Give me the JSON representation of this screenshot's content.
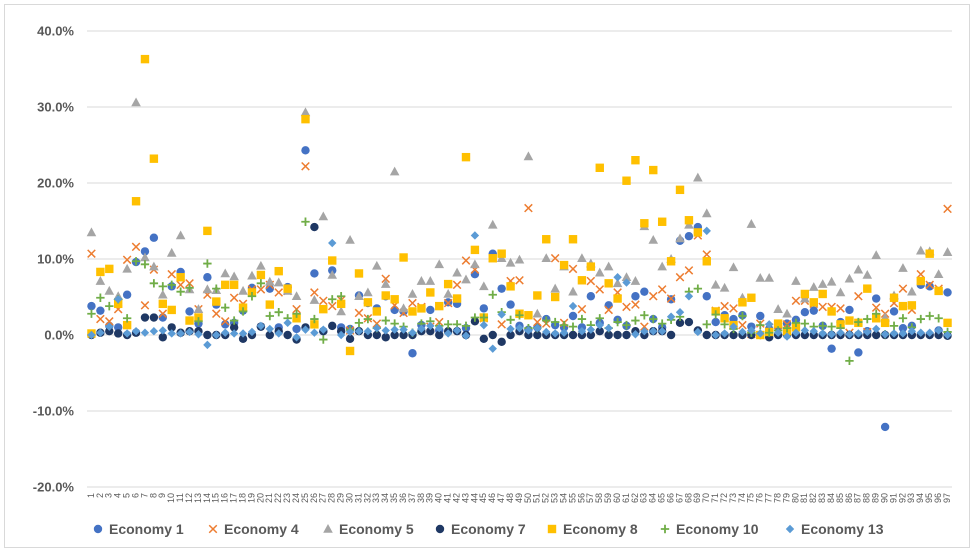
{
  "chart_data": {
    "type": "scatter",
    "title": "",
    "xlabel": "",
    "ylabel": "",
    "ylim": [
      -20,
      40
    ],
    "y_ticks": [
      "40.0%",
      "30.0%",
      "20.0%",
      "10.0%",
      "0.0%",
      "-10.0%",
      "-20.0%"
    ],
    "x": [
      1,
      2,
      3,
      4,
      5,
      6,
      7,
      8,
      9,
      10,
      11,
      12,
      13,
      14,
      15,
      16,
      17,
      18,
      19,
      20,
      21,
      22,
      23,
      24,
      25,
      26,
      27,
      28,
      29,
      30,
      31,
      32,
      33,
      34,
      35,
      36,
      37,
      38,
      39,
      40,
      41,
      42,
      43,
      44,
      45,
      46,
      47,
      48,
      49,
      50,
      51,
      52,
      53,
      54,
      55,
      56,
      57,
      58,
      59,
      60,
      61,
      62,
      63,
      64,
      65,
      66,
      67,
      68,
      69,
      70,
      71,
      72,
      73,
      74,
      75,
      76,
      77,
      78,
      79,
      80,
      81,
      82,
      83,
      84,
      85,
      86,
      87,
      88,
      89,
      90,
      91,
      92,
      93,
      94,
      95,
      96,
      97
    ],
    "x_tick_labels": [
      "1",
      "2",
      "3",
      "4",
      "5",
      "6",
      "7",
      "8",
      "9",
      "10",
      "11",
      "12",
      "13",
      "14",
      "15",
      "16",
      "17",
      "18",
      "19",
      "20",
      "21",
      "22",
      "23",
      "24",
      "25",
      "26",
      "27",
      "28",
      "29",
      "30",
      "31",
      "32",
      "33",
      "34",
      "35",
      "36",
      "37",
      "38",
      "39",
      "40",
      "41",
      "42",
      "43",
      "44",
      "45",
      "46",
      "47",
      "48",
      "49",
      "50",
      "51",
      "52",
      "53",
      "54",
      "55",
      "56",
      "57",
      "58",
      "59",
      "60",
      "61",
      "62",
      "63",
      "64",
      "65",
      "66",
      "67",
      "68",
      "69",
      "70",
      "71",
      "72",
      "73",
      "74",
      "75",
      "76",
      "77",
      "78",
      "79",
      "80",
      "81",
      "82",
      "83",
      "84",
      "85",
      "86",
      "87",
      "88",
      "89",
      "90",
      "91",
      "92",
      "93",
      "94",
      "95",
      "96",
      "97"
    ],
    "grid": "horizontal",
    "legend_position": "bottom",
    "series": [
      {
        "name": "Economy 1",
        "marker": "circle",
        "color": "#4472c4",
        "values": [
          3.8,
          3.2,
          1.2,
          1.0,
          5.3,
          9.6,
          11.0,
          12.8,
          2.3,
          6.4,
          8.3,
          3.1,
          1.5,
          7.6,
          4.0,
          1.4,
          1.6,
          3.2,
          6.2,
          1.1,
          6.1,
          1.0,
          6.3,
          0.8,
          24.3,
          8.1,
          0.5,
          8.5,
          1.0,
          0.8,
          5.2,
          4.2,
          3.5,
          5.1,
          3.3,
          3.1,
          -2.4,
          1.3,
          3.3,
          0.6,
          4.3,
          4.1,
          0.9,
          8.0,
          3.5,
          10.7,
          6.1,
          4.0,
          1.2,
          0.7,
          1.0,
          2.1,
          1.3,
          1.0,
          2.5,
          1.0,
          5.1,
          1.6,
          3.9,
          2.0,
          1.2,
          5.1,
          5.7,
          2.1,
          1.0,
          4.7,
          12.4,
          13.0,
          14.2,
          5.1,
          1.7,
          2.6,
          2.1,
          2.6,
          1.1,
          2.5,
          0.8,
          1.1,
          1.5,
          2.0,
          3.0,
          3.2,
          1.2,
          -1.8,
          1.7,
          3.3,
          -2.3,
          0.5,
          4.8,
          -12.1,
          3.1,
          0.9,
          1.2,
          6.6,
          6.4,
          0.6,
          5.6
        ]
      },
      {
        "name": "Economy 4",
        "marker": "x",
        "color": "#ed7d31",
        "values": [
          10.7,
          2.1,
          1.8,
          3.4,
          9.9,
          11.6,
          3.9,
          8.6,
          2.8,
          8.0,
          6.6,
          6.8,
          3.4,
          5.3,
          2.8,
          1.8,
          4.9,
          4.1,
          6.0,
          6.0,
          6.6,
          5.6,
          5.8,
          3.4,
          22.2,
          5.6,
          4.5,
          3.8,
          4.6,
          0.6,
          2.9,
          2.2,
          1.5,
          7.4,
          3.9,
          2.9,
          4.2,
          3.7,
          1.1,
          1.7,
          4.2,
          6.6,
          9.8,
          8.6,
          2.2,
          10.1,
          1.4,
          7.1,
          7.2,
          16.7,
          1.7,
          1.5,
          10.1,
          1.6,
          8.7,
          3.4,
          7.1,
          6.0,
          3.3,
          5.6,
          3.7,
          4.0,
          1.1,
          5.1,
          6.0,
          4.8,
          7.6,
          8.5,
          13.1,
          10.6,
          3.2,
          3.8,
          3.5,
          1.3,
          0.1,
          1.5,
          1.0,
          1.3,
          1.4,
          4.5,
          4.5,
          4.1,
          3.7,
          3.7,
          3.5,
          0.3,
          5.1,
          0.4,
          3.6,
          2.8,
          4.2,
          6.1,
          3.3,
          8.0,
          6.6,
          6.1,
          16.6
        ]
      },
      {
        "name": "Economy 5",
        "marker": "triangle",
        "color": "#a5a5a5",
        "values": [
          13.5,
          7.1,
          5.8,
          5.1,
          8.7,
          30.6,
          10.2,
          9.0,
          5.3,
          10.8,
          13.1,
          6.0,
          3.4,
          6.0,
          5.9,
          8.1,
          7.7,
          5.8,
          7.8,
          9.1,
          7.0,
          6.9,
          5.8,
          5.1,
          29.3,
          4.6,
          15.6,
          7.9,
          3.1,
          12.5,
          5.1,
          5.6,
          9.1,
          6.7,
          21.5,
          3.5,
          5.4,
          7.1,
          7.1,
          9.3,
          5.4,
          8.2,
          7.3,
          9.3,
          6.4,
          14.5,
          10.1,
          9.5,
          9.9,
          23.5,
          2.8,
          10.1,
          6.1,
          9.0,
          5.7,
          10.1,
          9.4,
          8.2,
          9.0,
          6.8,
          7.6,
          7.1,
          14.3,
          12.5,
          9.0,
          10.0,
          12.7,
          14.5,
          20.7,
          16.0,
          6.6,
          6.2,
          8.9,
          4.9,
          14.6,
          7.5,
          7.5,
          3.4,
          2.8,
          7.1,
          4.8,
          6.3,
          6.7,
          7.0,
          5.6,
          7.4,
          8.6,
          7.9,
          10.5,
          2.3,
          5.2,
          8.8,
          5.7,
          11.1,
          11.0,
          8.0,
          10.9
        ]
      },
      {
        "name": "Economy 7",
        "marker": "circle",
        "color": "#1f3864",
        "values": [
          0.0,
          0.3,
          0.5,
          0.2,
          0.0,
          0.3,
          2.3,
          2.3,
          -0.3,
          1.0,
          0.3,
          0.5,
          0.5,
          0.0,
          0.0,
          0.0,
          1.0,
          -0.5,
          0.0,
          1.1,
          0.0,
          0.5,
          0.0,
          -0.6,
          1.0,
          14.2,
          0.5,
          1.2,
          0.5,
          -0.5,
          0.5,
          0.0,
          0.0,
          -0.3,
          0.0,
          0.0,
          0.0,
          0.5,
          0.5,
          0.0,
          0.5,
          0.5,
          0.0,
          1.8,
          -0.5,
          0.0,
          -0.9,
          0.0,
          0.5,
          0.0,
          0.0,
          0.0,
          0.0,
          0.0,
          0.0,
          0.0,
          0.0,
          0.5,
          0.0,
          0.0,
          0.0,
          0.5,
          0.0,
          0.5,
          0.5,
          0.0,
          1.6,
          1.7,
          0.6,
          0.0,
          0.0,
          0.0,
          0.0,
          0.0,
          0.0,
          0.0,
          -0.3,
          0.0,
          0.0,
          0.0,
          0.0,
          0.0,
          0.0,
          0.0,
          0.0,
          0.0,
          0.0,
          0.0,
          0.0,
          0.0,
          0.0,
          0.0,
          0.0,
          0.0,
          0.0,
          0.0,
          -0.1
        ]
      },
      {
        "name": "Economy 8",
        "marker": "square",
        "color": "#ffc000",
        "values": [
          0.2,
          8.3,
          8.7,
          4.1,
          1.3,
          17.6,
          36.3,
          23.2,
          4.1,
          3.3,
          7.6,
          1.9,
          2.3,
          13.7,
          4.4,
          6.6,
          6.6,
          3.6,
          5.6,
          7.9,
          4.0,
          8.4,
          6.1,
          2.2,
          28.4,
          1.4,
          3.4,
          9.8,
          4.1,
          -2.1,
          8.1,
          4.3,
          3.1,
          5.2,
          4.7,
          10.2,
          3.1,
          3.5,
          5.6,
          3.8,
          6.7,
          4.8,
          23.4,
          11.2,
          2.3,
          10.1,
          10.7,
          6.4,
          2.8,
          2.6,
          5.2,
          12.6,
          5.0,
          9.2,
          12.6,
          7.2,
          9.0,
          22.0,
          6.8,
          4.8,
          20.3,
          23.0,
          14.7,
          21.7,
          14.9,
          9.7,
          19.1,
          15.1,
          13.5,
          9.7,
          3.1,
          2.2,
          1.3,
          4.3,
          4.9,
          0.0,
          0.4,
          1.5,
          0.5,
          1.0,
          5.4,
          4.3,
          5.4,
          3.1,
          1.4,
          1.9,
          1.6,
          6.1,
          2.2,
          1.6,
          4.9,
          3.8,
          3.9,
          7.1,
          10.7,
          5.8,
          1.6
        ]
      },
      {
        "name": "Economy 10",
        "marker": "plus",
        "color": "#70ad47",
        "values": [
          2.8,
          4.9,
          3.8,
          4.7,
          2.2,
          9.7,
          9.3,
          6.8,
          6.4,
          6.6,
          5.7,
          6.2,
          1.8,
          9.4,
          6.1,
          3.6,
          1.9,
          3.1,
          5.1,
          6.8,
          2.5,
          3.0,
          2.2,
          2.8,
          14.9,
          2.1,
          -0.6,
          4.7,
          5.1,
          0.7,
          1.6,
          2.1,
          0.9,
          1.9,
          1.5,
          1.1,
          0.3,
          1.5,
          1.8,
          1.2,
          1.4,
          1.4,
          1.2,
          2.3,
          2.3,
          5.3,
          3.0,
          2.0,
          2.6,
          0.9,
          0.9,
          1.9,
          1.7,
          1.3,
          1.1,
          2.1,
          1.3,
          2.2,
          0.9,
          1.7,
          1.3,
          1.9,
          2.6,
          2.1,
          1.5,
          2.0,
          2.4,
          5.7,
          6.1,
          1.4,
          2.7,
          1.4,
          0.8,
          2.5,
          0.3,
          1.3,
          0.3,
          0.6,
          0.9,
          1.6,
          1.5,
          1.1,
          1.2,
          1.1,
          0.9,
          -3.4,
          1.7,
          2.1,
          2.8,
          0.1,
          1.2,
          2.2,
          1.0,
          2.1,
          2.5,
          2.2,
          0.4
        ]
      },
      {
        "name": "Economy 13",
        "marker": "diamond",
        "color": "#5b9bd5",
        "values": [
          0.0,
          0.3,
          1.1,
          4.7,
          0.2,
          0.5,
          0.3,
          0.5,
          0.6,
          0.2,
          0.2,
          0.4,
          0.1,
          -1.3,
          0.0,
          0.3,
          0.2,
          0.2,
          0.4,
          1.2,
          0.8,
          0.2,
          1.6,
          -0.3,
          0.7,
          0.3,
          0.7,
          12.1,
          0.0,
          0.4,
          0.5,
          0.5,
          0.9,
          0.6,
          0.7,
          0.7,
          0.3,
          0.8,
          1.2,
          0.9,
          0.2,
          0.6,
          -0.1,
          13.1,
          1.3,
          -1.8,
          2.7,
          0.8,
          0.9,
          0.6,
          0.9,
          0.4,
          0.2,
          0.3,
          3.8,
          0.5,
          0.7,
          1.3,
          0.9,
          7.6,
          6.9,
          0.1,
          0.5,
          0.5,
          0.5,
          2.4,
          3.0,
          5.1,
          0.4,
          13.7,
          0.0,
          0.2,
          1.1,
          0.4,
          0.6,
          0.2,
          1.4,
          0.3,
          -0.2,
          0.3,
          0.6,
          0.5,
          0.2,
          0.1,
          0.3,
          0.1,
          0.2,
          0.4,
          0.8,
          0.1,
          0.2,
          0.2,
          0.5,
          0.3,
          0.3,
          0.6,
          0.0
        ]
      }
    ]
  }
}
